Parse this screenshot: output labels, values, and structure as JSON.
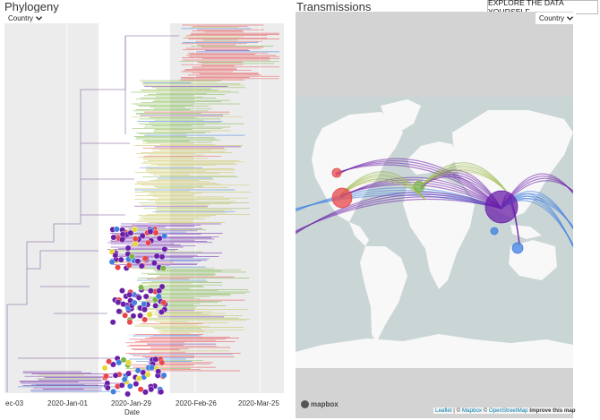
{
  "phylogeny": {
    "title": "Phylogeny",
    "color_by": "Country",
    "x_axis_label": "Date",
    "ticks": [
      "ec-03",
      "2020-Jan-01",
      "2020-Jan-29",
      "2020-Feb-26",
      "2020-Mar-25"
    ]
  },
  "transmissions": {
    "title": "Transmissions",
    "color_by": "Country",
    "explore_label": "EXPLORE THE DATA YOURSELF",
    "mapbox_label": "mapbox",
    "attribution": {
      "leaflet": "Leaflet",
      "sep1": " | © ",
      "mapbox": "Mapbox",
      "sep2": " © ",
      "osm": "OpenStreetMap",
      "improve": "Improve this map"
    }
  },
  "colors": {
    "purple": "#6a1fa8",
    "red": "#e8474a",
    "green": "#7cb547",
    "olive": "#c8c45a",
    "blue": "#3f7fe0",
    "map_land": "#f8f8f8",
    "map_water": "#cad5d6"
  }
}
